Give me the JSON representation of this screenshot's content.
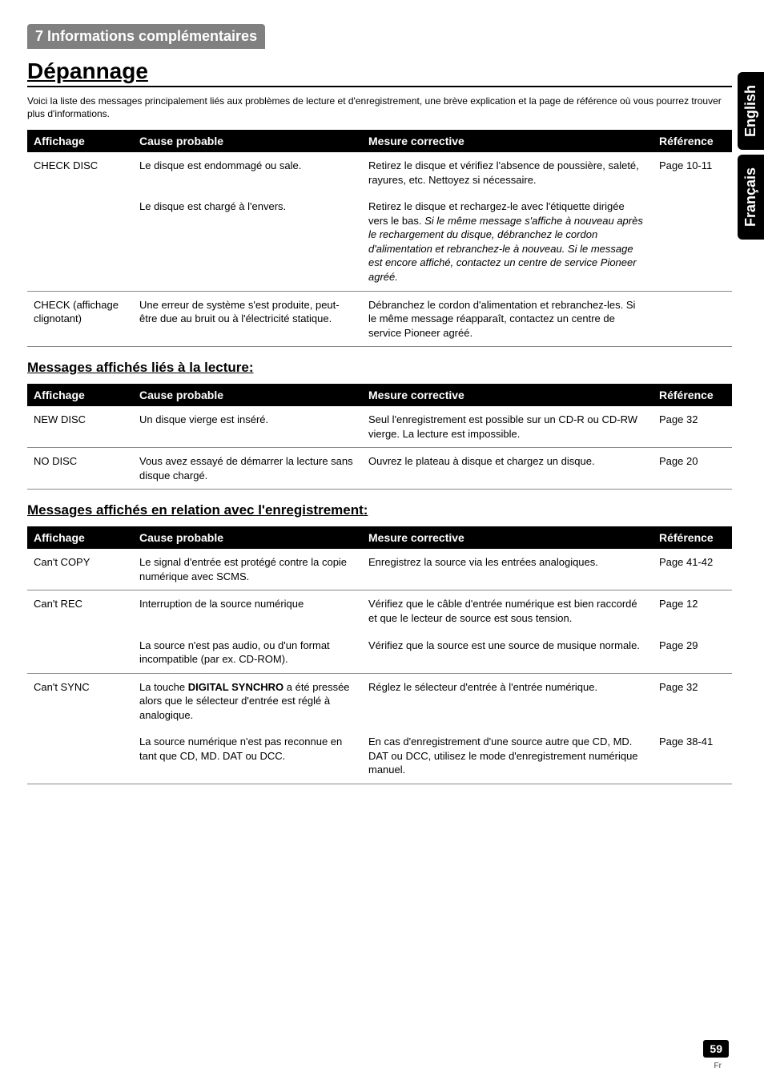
{
  "section_bar": "7 Informations complémentaires",
  "main_title": "Dépannage",
  "intro": "Voici la liste des messages principalement liés aux problèmes de lecture et d'enregistrement, une brève explication et la page de référence où vous pourrez trouver plus d'informations.",
  "headers": {
    "affichage": "Affichage",
    "cause": "Cause probable",
    "mesure": "Mesure corrective",
    "reference": "Référence"
  },
  "table1": {
    "rows": [
      {
        "affichage": "CHECK DISC",
        "cause": "Le disque est endommagé ou sale.",
        "mesure": "Retirez le disque et vérifiez l'absence de poussière, saleté, rayures, etc. Nettoyez si nécessaire.",
        "reference": "Page 10-11",
        "no_sep": true
      },
      {
        "affichage": "",
        "cause": "Le disque est chargé à l'envers.",
        "mesure_prefix": "Retirez le disque et rechargez-le avec l'étiquette dirigée vers le bas.",
        "mesure_italic": "Si le même message s'affiche à nouveau après le rechargement du disque, débranchez le cordon d'alimentation et rebranchez-le à nouveau. Si le message est encore affiché, contactez un centre de service Pioneer agréé.",
        "reference": ""
      },
      {
        "affichage": "CHECK (affichage clignotant)",
        "cause": "Une erreur de système s'est produite, peut-être due au bruit ou à l'électricité statique.",
        "mesure": "Débranchez le cordon d'alimentation et rebranchez-les. Si le même message réapparaît, contactez un centre de service Pioneer agréé.",
        "reference": ""
      }
    ]
  },
  "sub_title_lecture": "Messages affichés liés à la lecture:",
  "table2": {
    "rows": [
      {
        "affichage": "NEW DISC",
        "cause": "Un disque vierge est inséré.",
        "mesure": "Seul l'enregistrement est possible sur un CD-R ou CD-RW vierge. La lecture est impossible.",
        "reference": "Page 32"
      },
      {
        "affichage": "NO DISC",
        "cause": "Vous avez essayé de démarrer la lecture sans disque chargé.",
        "mesure": "Ouvrez le plateau à disque et chargez un disque.",
        "reference": "Page 20"
      }
    ]
  },
  "sub_title_enreg": "Messages affichés en relation avec l'enregistrement:",
  "table3": {
    "rows": [
      {
        "affichage": "Can't COPY",
        "cause": "Le signal d'entrée est protégé contre la copie numérique avec SCMS.",
        "mesure": "Enregistrez la source via les entrées analogiques.",
        "reference": "Page 41-42"
      },
      {
        "affichage": "Can't REC",
        "cause": "Interruption de la source numérique",
        "mesure": "Vérifiez que le câble d'entrée numérique est bien raccordé et que le lecteur de source est sous tension.",
        "reference": "Page 12",
        "no_sep": true
      },
      {
        "affichage": "",
        "cause": "La source n'est pas audio, ou d'un format incompatible (par ex. CD-ROM).",
        "mesure": "Vérifiez que la source est une source de musique normale.",
        "reference": "Page 29"
      },
      {
        "affichage": "Can't SYNC",
        "cause_prefix": "La touche ",
        "cause_bold": "DIGITAL SYNCHRO",
        "cause_suffix": " a été pressée alors que le sélecteur d'entrée est réglé à analogique.",
        "mesure": "Réglez le sélecteur d'entrée à l'entrée numérique.",
        "reference": "Page 32",
        "no_sep": true
      },
      {
        "affichage": "",
        "cause": "La source numérique n'est pas reconnue en tant que CD, MD. DAT ou DCC.",
        "mesure": "En cas d'enregistrement d'une source autre que CD, MD. DAT ou DCC, utilisez le mode d'enregistrement numérique manuel.",
        "reference": "Page 38-41"
      }
    ]
  },
  "side_tabs": {
    "english": "English",
    "francais": "Français"
  },
  "page_number": "59",
  "page_lang": "Fr"
}
